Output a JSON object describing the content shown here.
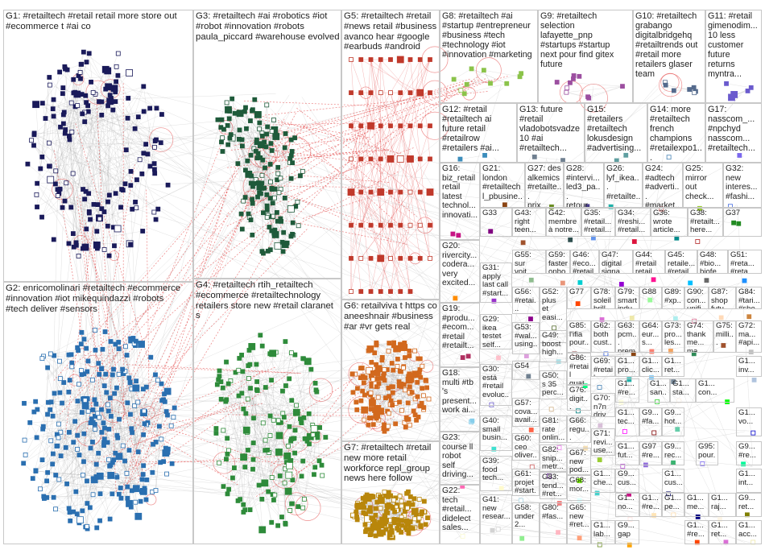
{
  "graph": {
    "groups": [
      {
        "id": "G1",
        "label": "G1: #retailtech #retail retail more store out\n#ecommerce t #ai co",
        "node_color": "#1a1a5a",
        "style": "ring"
      },
      {
        "id": "G2",
        "label": "G2: enricomolinari #retailtech #ecommerce\n#innovation #iot mikequindazzi #robots\n#tech deliver #sensors",
        "node_color": "#2a6fb0",
        "style": "blob"
      },
      {
        "id": "G3",
        "label": "G3: #retailtech #ai #robotics #iot\n#robot #innovation #robots\npaula_piccard #warehouse evolved",
        "node_color": "#1f5a3a",
        "style": "cluster"
      },
      {
        "id": "G4",
        "label": "G4: #retailtech rtih_retailtech\n#ecommerce #retailtechnology\nretailers store new #retail claranet\ns",
        "node_color": "#2e8b3a",
        "style": "blob"
      },
      {
        "id": "G5",
        "label": "G5: #retailtech #retail\n#news retail #business\navanco hear #google\n#earbuds #android",
        "node_color": "#c0392b",
        "style": "grid"
      },
      {
        "id": "G6",
        "label": "G6: retailviva t https co\naneeshnair #business\n#ar #vr gets real",
        "node_color": "#d2691e",
        "style": "blob"
      },
      {
        "id": "G7",
        "label": "G7: #retailtech #retail\nnew more retail\nworkforce repl_group\nnews here follow",
        "node_color": "#b8860b",
        "style": "blob"
      },
      {
        "id": "G8",
        "label": "G8: #retailtech #ai\n#startup #entrepreneur\n#business #tech\n#technology #iot\n#innovation #marketing",
        "node_color": "#8bc34a",
        "style": "small"
      },
      {
        "id": "G9",
        "label": "G9: #retailtech\nselection\nlafayette_pnp\n#startups #startup\nnext pour find gitex\nfuture",
        "node_color": "#9c4fa0",
        "style": "small"
      },
      {
        "id": "G10",
        "label": "G10: #retailtech\ngrabango\ndigitalbridgehq\n#retailtrends out\n#retail more\nretailers glaser\nteam",
        "node_color": "#556b8d",
        "style": "small"
      },
      {
        "id": "G11",
        "label": "G11: #retail\ngimenodim...\n10 less\ncustomer\nfuture\nreturns\nmyntra...",
        "node_color": "#6a5acd",
        "style": "small"
      },
      {
        "id": "G12",
        "label": "G12: #retail\n#retailtech ai\nfuture retail\n#retailrow\n#retailers #ai...",
        "node_color": "#3c8dbc",
        "style": "small"
      },
      {
        "id": "G13",
        "label": "G13: future\n#retail\nvladobotsvadze\n10 #ai\n#retailtech...",
        "node_color": "#708090",
        "style": "small"
      },
      {
        "id": "G15",
        "label": "G15:\n#retailers\n#retailtech\nlokusdesign\n#advertising...",
        "node_color": "#5f9ea0",
        "style": "small"
      },
      {
        "id": "G14",
        "label": "G14: more\n#retailtech\nfrench\nchampions\n#retailexpo1...",
        "node_color": "#4682b4",
        "style": "small"
      },
      {
        "id": "G17",
        "label": "G17:\nnasscom_...\n#npchyd\nnasscom...\n#retailtech...",
        "node_color": "#7b68ee",
        "style": "small"
      },
      {
        "id": "G16",
        "label": "G16:\nbiz_retail\nretail\nlatest\ntechnol...\ninnovati...",
        "node_color": "#c71585",
        "style": "small"
      },
      {
        "id": "G21",
        "label": "G21:\nlondon\n#retailtech\nl_pbusine...",
        "node_color": "#8b4513",
        "style": "small"
      },
      {
        "id": "G27",
        "label": "G27: des\nalkemics\n#retailte...\nprix...",
        "node_color": "#6b8e23",
        "style": "small"
      },
      {
        "id": "G28",
        "label": "G28:\n#intervi...\nled3_pa...\nretour...",
        "node_color": "#483d8b",
        "style": "small"
      },
      {
        "id": "G26",
        "label": "G26:\nlyf_ikea...\n#retailte...\nbigthinx...",
        "node_color": "#20b2aa",
        "style": "small"
      },
      {
        "id": "G24",
        "label": "G24:\n#adtech\n#adverti...\n#market...",
        "node_color": "#cd5c5c",
        "style": "small"
      },
      {
        "id": "G25",
        "label": "G25:\nmirror\nout\ncheck...",
        "node_color": "#9acd32",
        "style": "small"
      },
      {
        "id": "G32",
        "label": "G32:\nnew\ninteres...\n#fashi...",
        "node_color": "#4169e1",
        "style": "small"
      },
      {
        "id": "G33",
        "label": "G33",
        "node_color": "#800080",
        "style": "small"
      },
      {
        "id": "G43",
        "label": "G43:\nright\nteen...",
        "node_color": "#a0522d",
        "style": "small"
      },
      {
        "id": "G42",
        "label": "G42:\nmembre\nà notre...",
        "node_color": "#2f4f4f",
        "style": "small"
      },
      {
        "id": "G35",
        "label": "G35:\n#retail...\n#retail...",
        "node_color": "#6495ed",
        "style": "small"
      },
      {
        "id": "G34",
        "label": "G34:\n#reshi...\n#retail...",
        "node_color": "#dc143c",
        "style": "small"
      },
      {
        "id": "G36",
        "label": "G36:\nwrote\narticle...",
        "node_color": "#008b8b",
        "style": "small"
      },
      {
        "id": "G38",
        "label": "G38:\n#retailt...\nhere...",
        "node_color": "#b22222",
        "style": "small"
      },
      {
        "id": "G37",
        "label": "G37",
        "node_color": "#228b22",
        "style": "small"
      },
      {
        "id": "G20",
        "label": "G20:\nrivercity...\ncodera...\nvery\nexcited...",
        "node_color": "#ff8c00",
        "style": "small"
      },
      {
        "id": "G31",
        "label": "G31:\napply\nlast call\n#start...",
        "node_color": "#9932cc",
        "style": "small"
      },
      {
        "id": "G55",
        "label": "G55:\nsur\nvoit...",
        "node_color": "#8fbc8f",
        "style": "small"
      },
      {
        "id": "G59",
        "label": "G59:\nfaster\nonbo...",
        "node_color": "#e9967a",
        "style": "small"
      },
      {
        "id": "G46",
        "label": "G46:\n#eco...\n#retail...",
        "node_color": "#00ced1",
        "style": "small"
      },
      {
        "id": "G47",
        "label": "G47:\ndigital\nsigna...",
        "node_color": "#9400d3",
        "style": "small"
      },
      {
        "id": "G44",
        "label": "G44:\n#retail\nretail...",
        "node_color": "#ff1493",
        "style": "small"
      },
      {
        "id": "G45",
        "label": "G45:\nretaile...\n#retail...",
        "node_color": "#00bfff",
        "style": "small"
      },
      {
        "id": "G48",
        "label": "G48:\n#bio...\nbiofe...",
        "node_color": "#696969",
        "style": "small"
      },
      {
        "id": "G51",
        "label": "G51:\n#reta...\n#reta...",
        "node_color": "#1e90ff",
        "style": "small"
      },
      {
        "id": "G19",
        "label": "G19:\n#produ...\n#ecom...\n#retail\n#retailt...",
        "node_color": "#b03060",
        "style": "small"
      },
      {
        "id": "G56",
        "label": "G56:\n#retai...\n#thel...",
        "node_color": "#8b008b",
        "style": "small"
      },
      {
        "id": "G52",
        "label": "G52:\nplus\net\neasi...",
        "node_color": "#556b2f",
        "style": "small"
      },
      {
        "id": "G77",
        "label": "G77",
        "node_color": "#ff4500",
        "style": "small"
      },
      {
        "id": "G78",
        "label": "G78:\nsoleil\nbrill...",
        "node_color": "#da70d6",
        "style": "small"
      },
      {
        "id": "G79",
        "label": "G79:\nsmart\nindu...",
        "node_color": "#eee8aa",
        "style": "small"
      },
      {
        "id": "G88",
        "label": "G88",
        "node_color": "#98fb98",
        "style": "small"
      },
      {
        "id": "G89",
        "label": "G89:\n#xp...\nnas...",
        "node_color": "#afeeee",
        "style": "small"
      },
      {
        "id": "G90",
        "label": "G90:\ncon...\nunifi...",
        "node_color": "#db7093",
        "style": "small"
      },
      {
        "id": "G87",
        "label": "G87:\nshop\nfutu...",
        "node_color": "#ffdab9",
        "style": "small"
      },
      {
        "id": "G84",
        "label": "G84:\n#tari...\n#she...",
        "node_color": "#cd853f",
        "style": "small"
      },
      {
        "id": "G29",
        "label": "G29:\nikea\ntestet\nself...",
        "node_color": "#ffc0cb",
        "style": "small"
      },
      {
        "id": "G53",
        "label": "G53:\n#wal...\nusing...",
        "node_color": "#dda0dd",
        "style": "small"
      },
      {
        "id": "G49",
        "label": "G49:\nboost\nhigh...",
        "node_color": "#b0e0e6",
        "style": "small"
      },
      {
        "id": "G85",
        "label": "G85:\nl'ifia\npour...",
        "node_color": "#bc8f8f",
        "style": "small"
      },
      {
        "id": "G62",
        "label": "G62:\nboth\ncust...",
        "node_color": "#4169e1",
        "style": "small"
      },
      {
        "id": "G63",
        "label": "G63:\npcm...\nprem...",
        "node_color": "#8b4513",
        "style": "small"
      },
      {
        "id": "G64",
        "label": "G64:\neur...\ns...",
        "node_color": "#fa8072",
        "style": "small"
      },
      {
        "id": "G73",
        "label": "G73:\npro...\nles...",
        "node_color": "#f4a460",
        "style": "small"
      },
      {
        "id": "G74",
        "label": "G74:\nthankme...\nma...",
        "node_color": "#2e8b57",
        "style": "small"
      },
      {
        "id": "G75",
        "label": "G75:\nmilli...",
        "node_color": "#a0522d",
        "style": "small"
      },
      {
        "id": "G72",
        "label": "G72:\nma...\n#api...",
        "node_color": "#c0c0c0",
        "style": "small"
      },
      {
        "id": "G18",
        "label": "G18:\nmulti #tb\n's\npresent...\nwork ai...",
        "node_color": "#87ceeb",
        "style": "small"
      },
      {
        "id": "G30",
        "label": "G30:\nestá\n#retail\nevoluc...",
        "node_color": "#6a5acd",
        "style": "small"
      },
      {
        "id": "G54",
        "label": "G54",
        "node_color": "#708090",
        "style": "small"
      },
      {
        "id": "G86",
        "label": "G86:\n#retail\nquat...",
        "node_color": "#00ff7f",
        "style": "small"
      },
      {
        "id": "G69",
        "label": "G69:\n#retail\n#cs...",
        "node_color": "#4682b4",
        "style": "small"
      },
      {
        "id": "G50",
        "label": "G50:\ns 35\nperc...\nama...",
        "node_color": "#d2b48c",
        "style": "small"
      },
      {
        "id": "G76",
        "label": "G76:\ndigit...",
        "node_color": "#008080",
        "style": "small"
      },
      {
        "id": "G70",
        "label": "G70:\nn7n\ndriv...",
        "node_color": "#d8bfd8",
        "style": "small"
      },
      {
        "id": "G57",
        "label": "G57:\ncova...\navail...",
        "node_color": "#ff6347",
        "style": "small"
      },
      {
        "id": "G40",
        "label": "G40:\nsmall\nbusin...",
        "node_color": "#40e0d0",
        "style": "small"
      },
      {
        "id": "G81",
        "label": "G81:\nrate\nonlin...",
        "node_color": "#ee82ee",
        "style": "small"
      },
      {
        "id": "G66",
        "label": "G66:\nregu...\nretai...",
        "node_color": "#f5deb3",
        "style": "small"
      },
      {
        "id": "G71",
        "label": "G71:\nrevi...\nuse...",
        "node_color": "#9acd32",
        "style": "small"
      },
      {
        "id": "G23",
        "label": "G23:\ncourse ll\nrobot\nself\ndriving...",
        "node_color": "#ff69b4",
        "style": "small"
      },
      {
        "id": "G60",
        "label": "G60:\nceo\noliver...",
        "node_color": "#cd5c5c",
        "style": "small"
      },
      {
        "id": "G82",
        "label": "G82:\nsnip...\nmetr...",
        "node_color": "#4b0082",
        "style": "small"
      },
      {
        "id": "G67",
        "label": "G67:\nnew\npod...",
        "node_color": "#7cfc00",
        "style": "small"
      },
      {
        "id": "G39",
        "label": "G39:\nfood\ntech...",
        "node_color": "#fffacd",
        "style": "small"
      },
      {
        "id": "G61",
        "label": "G61:\nprojet\n#start...",
        "node_color": "#add8e6",
        "style": "small"
      },
      {
        "id": "G83",
        "label": "G83:\ntend...\n#ret...",
        "node_color": "#f08080",
        "style": "small"
      },
      {
        "id": "G68",
        "label": "G68:\nmor...",
        "node_color": "#e0ffff",
        "style": "small"
      },
      {
        "id": "G22",
        "label": "G22:\ntech\n#retail...\ndidelect\nsales...",
        "node_color": "#fafad2",
        "style": "small"
      },
      {
        "id": "G41",
        "label": "G41:\nnew\nresear...",
        "node_color": "#d3d3d3",
        "style": "small"
      },
      {
        "id": "G58",
        "label": "G58:\nunder\n2...",
        "node_color": "#90ee90",
        "style": "small"
      },
      {
        "id": "G80",
        "label": "G80:\n#fas...",
        "node_color": "#ffb6c1",
        "style": "small"
      },
      {
        "id": "G65",
        "label": "G65:\nnew\n#ret...",
        "node_color": "#ffa07a",
        "style": "small"
      },
      {
        "id": "G1a",
        "label": "G1...\npro...",
        "node_color": "#20b2aa",
        "style": "small"
      },
      {
        "id": "G1b",
        "label": "G1...\nclic...",
        "node_color": "#87cefa",
        "style": "small"
      },
      {
        "id": "G1c",
        "label": "G1...\nret...",
        "node_color": "#778899",
        "style": "small"
      },
      {
        "id": "G1d",
        "label": "G1...\ninv...",
        "node_color": "#b0c4de",
        "style": "small"
      },
      {
        "id": "G1e",
        "label": "G1...\n#re...",
        "node_color": "#ffffe0",
        "style": "small"
      },
      {
        "id": "G1f",
        "label": "G1...\ncon...",
        "node_color": "#00ff00",
        "style": "small"
      },
      {
        "id": "G1g",
        "label": "G1...\nsan...",
        "node_color": "#32cd32",
        "style": "small"
      },
      {
        "id": "G1h",
        "label": "G1...\nsta...",
        "node_color": "#faf0e6",
        "style": "small"
      },
      {
        "id": "G1i",
        "label": "G1...\ntec...",
        "node_color": "#ff00ff",
        "style": "small"
      },
      {
        "id": "G9a",
        "label": "G9...\n#fa...",
        "node_color": "#800000",
        "style": "small"
      },
      {
        "id": "G9b",
        "label": "G9...\nhot...",
        "node_color": "#66cdaa",
        "style": "small"
      },
      {
        "id": "G1j",
        "label": "G1...\nvo...",
        "node_color": "#0000cd",
        "style": "small"
      },
      {
        "id": "G1k",
        "label": "G1...\nfut...",
        "node_color": "#ba55d3",
        "style": "small"
      },
      {
        "id": "G97",
        "label": "G97\n#re...",
        "node_color": "#9370db",
        "style": "small"
      },
      {
        "id": "G9c",
        "label": "G9...\nrec...",
        "node_color": "#3cb371",
        "style": "small"
      },
      {
        "id": "G95",
        "label": "G95:\npour...",
        "node_color": "#7b68ee",
        "style": "small"
      },
      {
        "id": "G9d",
        "label": "G9...\n#re...",
        "node_color": "#00fa9a",
        "style": "small"
      },
      {
        "id": "G1l",
        "label": "G1...\nche...",
        "node_color": "#48d1cc",
        "style": "small"
      },
      {
        "id": "G9e",
        "label": "G9...\ncus...",
        "node_color": "#c71585",
        "style": "small"
      },
      {
        "id": "G1m",
        "label": "G1...\ncus...",
        "node_color": "#191970",
        "style": "small"
      },
      {
        "id": "G1n",
        "label": "G1...\nint...",
        "node_color": "#f5fffa",
        "style": "small"
      },
      {
        "id": "G1o",
        "label": "G1...\nno...",
        "node_color": "#ffe4e1",
        "style": "small"
      },
      {
        "id": "G1p",
        "label": "G1...\n#re...",
        "node_color": "#ffe4b5",
        "style": "small"
      },
      {
        "id": "G1q",
        "label": "G1...\npe...",
        "node_color": "#ffdead",
        "style": "small"
      },
      {
        "id": "G1r",
        "label": "G1...\nme...",
        "node_color": "#000080",
        "style": "small"
      },
      {
        "id": "G1s",
        "label": "G1...\nraj...",
        "node_color": "#fdf5e6",
        "style": "small"
      },
      {
        "id": "G9f",
        "label": "G9...\nret...",
        "node_color": "#808000",
        "style": "small"
      },
      {
        "id": "G1t",
        "label": "G1...\nlab...",
        "node_color": "#6b8e23",
        "style": "small"
      },
      {
        "id": "G9g",
        "label": "G9...\ngap",
        "node_color": "#ffa500",
        "style": "small"
      },
      {
        "id": "G1u",
        "label": "G1...\n#re...",
        "node_color": "#ff4500",
        "style": "small"
      },
      {
        "id": "G1v",
        "label": "G1...\nret...",
        "node_color": "#da70d6",
        "style": "small"
      },
      {
        "id": "G1w",
        "label": "G1...\nacc...",
        "node_color": "#eee8aa",
        "style": "small"
      }
    ],
    "colors": {
      "border": "#c8c8c8",
      "edge_gray": "#9a9a9a",
      "edge_red": "#e03030",
      "node_border": "#000000"
    }
  }
}
